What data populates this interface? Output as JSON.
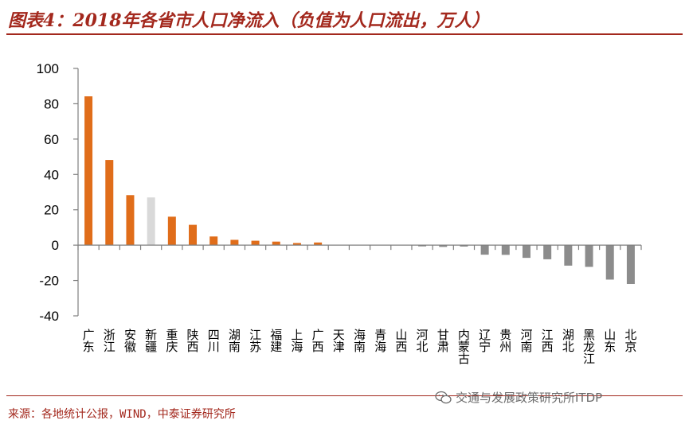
{
  "title": "图表4：2018年各省市人口净流入（负值为人口流出，万人）",
  "source": "来源：各地统计公报，WIND，中泰证券研究所",
  "watermark": "交通与发展政策研究所ITDP",
  "colors": {
    "positive": "#e06d1a",
    "highlight": "#d9d9d9",
    "negative": "#8c8c8c",
    "accent": "#a3281d"
  },
  "chart_data": {
    "type": "bar",
    "title": "2018年各省市人口净流入（负值为人口流出，万人）",
    "xlabel": "",
    "ylabel": "",
    "ylim": [
      -40,
      100
    ],
    "yticks": [
      -40,
      -20,
      0,
      20,
      40,
      60,
      80,
      100
    ],
    "grid": false,
    "categories": [
      "广东",
      "浙江",
      "安徽",
      "新疆",
      "重庆",
      "陕西",
      "四川",
      "湖南",
      "江苏",
      "福建",
      "上海",
      "广西",
      "天津",
      "海南",
      "青海",
      "山西",
      "河北",
      "甘肃",
      "内蒙古",
      "辽宁",
      "贵州",
      "河南",
      "江西",
      "湖北",
      "黑龙江",
      "山东",
      "北京"
    ],
    "values": [
      84.2,
      48.2,
      28.3,
      27,
      16.1,
      11.5,
      4.9,
      3,
      2.5,
      2,
      1.2,
      1.5,
      0,
      0,
      0,
      0,
      -0.7,
      -1,
      -0.8,
      -5.4,
      -5.5,
      -7.2,
      -8,
      -11.6,
      -12.3,
      -19.5,
      -22
    ]
  }
}
